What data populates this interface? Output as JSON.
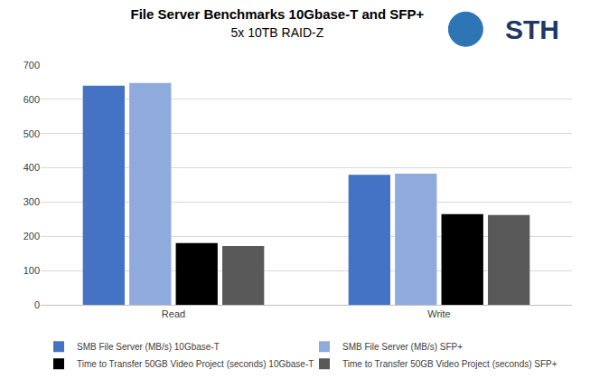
{
  "chart_data": {
    "type": "bar",
    "title": "File Server Benchmarks 10Gbase-T and SFP+",
    "subtitle": "5x 10TB RAID-Z",
    "annotations": [
      {
        "text": "STH"
      }
    ],
    "categories": [
      "Read",
      "Write"
    ],
    "series": [
      {
        "name": "SMB File Server (MB/s) 10Gbase-T",
        "color": "#4472c4",
        "values": [
          640,
          380
        ]
      },
      {
        "name": "SMB File Server (MB/s) SFP+",
        "color": "#8faadc",
        "values": [
          648,
          383
        ]
      },
      {
        "name": "Time to Transfer 50GB Video Project (seconds) 10Gbase-T",
        "color": "#000000",
        "values": [
          180,
          265
        ]
      },
      {
        "name": "Time to Transfer 50GB Video Project (seconds) SFP+",
        "color": "#595959",
        "values": [
          172,
          262
        ]
      }
    ],
    "ylim": [
      0,
      700
    ],
    "yticks": [
      0,
      100,
      200,
      300,
      400,
      500,
      600,
      700
    ],
    "grid": true,
    "legend": "bottom"
  }
}
